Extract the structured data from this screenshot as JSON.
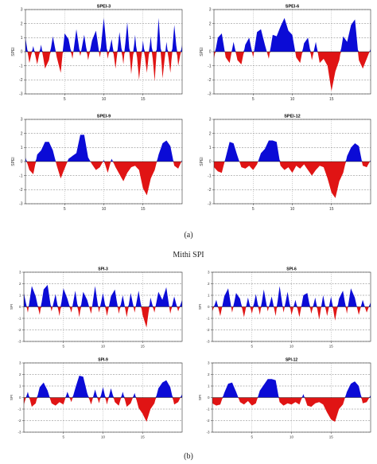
{
  "captions": {
    "a": "(a)",
    "b": "(b)"
  },
  "section_b_title": "Mithi SPI",
  "chart_data": [
    {
      "id": "spei3",
      "type": "area",
      "title": "SPEI-3",
      "ylabel": "SPEI",
      "ylim": [
        -3,
        3
      ],
      "yticks": [
        -3,
        -2,
        -1,
        0,
        1,
        2,
        3
      ],
      "xlim": [
        0,
        20
      ],
      "xticks": [
        5,
        10,
        15
      ],
      "grid": true,
      "x": [
        0,
        0.5,
        1,
        1.5,
        2,
        2.5,
        3,
        3.5,
        4,
        4.5,
        5,
        5.5,
        6,
        6.5,
        7,
        7.5,
        8,
        8.5,
        9,
        9.5,
        10,
        10.5,
        11,
        11.5,
        12,
        12.5,
        13,
        13.5,
        14,
        14.5,
        15,
        15.5,
        16,
        16.5,
        17,
        17.5,
        18,
        18.5,
        19,
        19.5,
        20
      ],
      "values": [
        1.0,
        -0.8,
        0.4,
        -0.9,
        0.5,
        -1.2,
        -0.6,
        1.1,
        -0.4,
        -1.5,
        1.3,
        0.9,
        -0.5,
        1.6,
        -0.3,
        1.2,
        -0.6,
        0.8,
        1.5,
        -0.4,
        2.4,
        -0.5,
        0.9,
        -1.2,
        1.4,
        -0.9,
        2.1,
        -1.6,
        1.2,
        -2.0,
        0.8,
        -1.5,
        1.1,
        -2.1,
        2.4,
        -1.9,
        0.7,
        -1.5,
        1.9,
        -1.0,
        0.5
      ]
    },
    {
      "id": "spei6",
      "type": "area",
      "title": "SPEI-6",
      "ylabel": "SPEI",
      "ylim": [
        -3,
        3
      ],
      "yticks": [
        -3,
        -2,
        -1,
        0,
        1,
        2,
        3
      ],
      "xlim": [
        0,
        20
      ],
      "xticks": [
        5,
        10,
        15
      ],
      "grid": true,
      "x": [
        0,
        0.5,
        1,
        1.5,
        2,
        2.5,
        3,
        3.5,
        4,
        4.5,
        5,
        5.5,
        6,
        6.5,
        7,
        7.5,
        8,
        8.5,
        9,
        9.5,
        10,
        10.5,
        11,
        11.5,
        12,
        12.5,
        13,
        13.5,
        14,
        14.5,
        15,
        15.5,
        16,
        16.5,
        17,
        17.5,
        18,
        18.5,
        19,
        19.5,
        20
      ],
      "values": [
        -0.5,
        1.0,
        1.3,
        -0.4,
        -0.8,
        0.7,
        -0.6,
        -0.9,
        0.5,
        1.0,
        -0.4,
        1.4,
        1.6,
        0.5,
        -0.5,
        1.2,
        1.1,
        1.8,
        2.4,
        1.5,
        1.2,
        -0.4,
        -0.8,
        0.6,
        1.0,
        -0.6,
        0.7,
        -0.8,
        -0.5,
        -1.0,
        -2.8,
        -1.4,
        -0.6,
        1.1,
        0.7,
        1.9,
        2.3,
        -0.6,
        -1.2,
        -0.5,
        0.2
      ]
    },
    {
      "id": "spei9",
      "type": "area",
      "title": "SPEI-9",
      "ylabel": "SPEI",
      "ylim": [
        -3,
        3
      ],
      "yticks": [
        -3,
        -2,
        -1,
        0,
        1,
        2,
        3
      ],
      "xlim": [
        0,
        20
      ],
      "xticks": [
        5,
        10,
        15
      ],
      "grid": true,
      "x": [
        0,
        0.5,
        1,
        1.5,
        2,
        2.5,
        3,
        3.5,
        4,
        4.5,
        5,
        5.5,
        6,
        6.5,
        7,
        7.5,
        8,
        8.5,
        9,
        9.5,
        10,
        10.5,
        11,
        11.5,
        12,
        12.5,
        13,
        13.5,
        14,
        14.5,
        15,
        15.5,
        16,
        16.5,
        17,
        17.5,
        18,
        18.5,
        19,
        19.5,
        20
      ],
      "values": [
        0.3,
        -0.6,
        -0.9,
        0.5,
        0.8,
        1.4,
        1.4,
        0.8,
        -0.3,
        -1.2,
        -0.5,
        0.2,
        0.4,
        0.6,
        1.9,
        1.9,
        0.3,
        -0.2,
        -0.6,
        -0.4,
        0.1,
        -0.8,
        0.2,
        -0.4,
        -0.9,
        -1.4,
        -0.8,
        -0.4,
        -0.3,
        -0.6,
        -1.9,
        -2.4,
        -1.2,
        -0.6,
        0.5,
        1.3,
        1.5,
        1.1,
        -0.3,
        -0.5,
        0.1
      ]
    },
    {
      "id": "spei12",
      "type": "area",
      "title": "SPEI-12",
      "ylabel": "SPEI",
      "ylim": [
        -3,
        3
      ],
      "yticks": [
        -3,
        -2,
        -1,
        0,
        1,
        2,
        3
      ],
      "xlim": [
        0,
        20
      ],
      "xticks": [
        5,
        10,
        15
      ],
      "grid": true,
      "x": [
        0,
        0.5,
        1,
        1.5,
        2,
        2.5,
        3,
        3.5,
        4,
        4.5,
        5,
        5.5,
        6,
        6.5,
        7,
        7.5,
        8,
        8.5,
        9,
        9.5,
        10,
        10.5,
        11,
        11.5,
        12,
        12.5,
        13,
        13.5,
        14,
        14.5,
        15,
        15.5,
        16,
        16.5,
        17,
        17.5,
        18,
        18.5,
        19,
        19.5,
        20
      ],
      "values": [
        -0.4,
        -0.7,
        -0.8,
        0.3,
        1.4,
        1.3,
        0.4,
        -0.4,
        -0.5,
        -0.3,
        -0.6,
        -0.2,
        0.6,
        0.9,
        1.5,
        1.5,
        1.4,
        -0.3,
        -0.6,
        -0.4,
        -0.8,
        -0.3,
        -0.5,
        -0.2,
        -0.6,
        -1.0,
        -0.6,
        -0.3,
        -0.4,
        -1.2,
        -2.2,
        -2.6,
        -1.4,
        -0.8,
        0.4,
        1.0,
        1.3,
        1.1,
        -0.3,
        -0.4,
        0.1
      ]
    },
    {
      "id": "spi3",
      "type": "area",
      "title": "SPI-3",
      "ylabel": "SPI",
      "ylim": [
        -3,
        3
      ],
      "yticks": [
        -3,
        -2,
        -1,
        0,
        1,
        2,
        3
      ],
      "xlim": [
        0,
        20
      ],
      "xticks": [
        5,
        10,
        15
      ],
      "grid": true,
      "x": [
        0,
        0.5,
        1,
        1.5,
        2,
        2.5,
        3,
        3.5,
        4,
        4.5,
        5,
        5.5,
        6,
        6.5,
        7,
        7.5,
        8,
        8.5,
        9,
        9.5,
        10,
        10.5,
        11,
        11.5,
        12,
        12.5,
        13,
        13.5,
        14,
        14.5,
        15,
        15.5,
        16,
        16.5,
        17,
        17.5,
        18,
        18.5,
        19,
        19.5,
        20
      ],
      "values": [
        1.2,
        -0.5,
        1.8,
        0.9,
        -0.7,
        1.5,
        1.9,
        -0.4,
        1.1,
        -0.8,
        1.6,
        0.7,
        -0.5,
        1.4,
        -0.9,
        1.3,
        0.6,
        -0.6,
        1.8,
        -0.5,
        1.2,
        -0.8,
        0.9,
        1.5,
        -0.6,
        1.0,
        -0.9,
        1.2,
        -0.5,
        1.4,
        -0.7,
        -1.8,
        0.8,
        -0.5,
        1.3,
        0.6,
        1.7,
        -0.6,
        0.9,
        -0.4,
        0.6
      ]
    },
    {
      "id": "spi6",
      "type": "area",
      "title": "SPI-6",
      "ylabel": "SPI",
      "ylim": [
        -3,
        3
      ],
      "yticks": [
        -3,
        -2,
        -1,
        0,
        1,
        2,
        3
      ],
      "xlim": [
        0,
        20
      ],
      "xticks": [
        5,
        10,
        15
      ],
      "grid": true,
      "x": [
        0,
        0.5,
        1,
        1.5,
        2,
        2.5,
        3,
        3.5,
        4,
        4.5,
        5,
        5.5,
        6,
        6.5,
        7,
        7.5,
        8,
        8.5,
        9,
        9.5,
        10,
        10.5,
        11,
        11.5,
        12,
        12.5,
        13,
        13.5,
        14,
        14.5,
        15,
        15.5,
        16,
        16.5,
        17,
        17.5,
        18,
        18.5,
        19,
        19.5,
        20
      ],
      "values": [
        -0.4,
        0.6,
        -0.8,
        0.9,
        1.6,
        -0.5,
        1.2,
        0.7,
        -0.9,
        0.8,
        -0.6,
        1.1,
        -0.7,
        1.5,
        -0.4,
        0.9,
        -0.8,
        1.8,
        -0.5,
        1.3,
        -0.7,
        0.6,
        -0.9,
        1.0,
        1.2,
        -0.6,
        0.8,
        -1.1,
        1.0,
        -0.8,
        0.9,
        -1.2,
        0.7,
        1.4,
        -0.6,
        1.6,
        0.8,
        -0.7,
        0.6,
        -0.5,
        0.4
      ]
    },
    {
      "id": "spi9",
      "type": "area",
      "title": "SPI-9",
      "ylabel": "SPI",
      "ylim": [
        -3,
        3
      ],
      "yticks": [
        -3,
        -2,
        -1,
        0,
        1,
        2,
        3
      ],
      "xlim": [
        0,
        20
      ],
      "xticks": [
        5,
        10,
        15
      ],
      "grid": true,
      "x": [
        0,
        0.5,
        1,
        1.5,
        2,
        2.5,
        3,
        3.5,
        4,
        4.5,
        5,
        5.5,
        6,
        6.5,
        7,
        7.5,
        8,
        8.5,
        9,
        9.5,
        10,
        10.5,
        11,
        11.5,
        12,
        12.5,
        13,
        13.5,
        14,
        14.5,
        15,
        15.5,
        16,
        16.5,
        17,
        17.5,
        18,
        18.5,
        19,
        19.5,
        20
      ],
      "values": [
        -0.6,
        0.5,
        -0.8,
        -0.5,
        0.9,
        1.3,
        0.6,
        -0.5,
        -0.7,
        -0.4,
        -0.6,
        0.5,
        -0.4,
        0.8,
        1.9,
        1.8,
        0.4,
        -0.6,
        0.7,
        -0.5,
        0.9,
        -0.6,
        0.8,
        -0.4,
        -0.7,
        0.5,
        -0.8,
        -0.5,
        0.4,
        -0.9,
        -1.4,
        -2.1,
        -1.0,
        -0.5,
        0.8,
        1.3,
        1.5,
        0.9,
        -0.6,
        -0.4,
        0.3
      ]
    },
    {
      "id": "spi12",
      "type": "area",
      "title": "SPI-12",
      "ylabel": "SPI",
      "ylim": [
        -3,
        3
      ],
      "yticks": [
        -3,
        -2,
        -1,
        0,
        1,
        2,
        3
      ],
      "xlim": [
        0,
        20
      ],
      "xticks": [
        5,
        10,
        15
      ],
      "grid": true,
      "x": [
        0,
        0.5,
        1,
        1.5,
        2,
        2.5,
        3,
        3.5,
        4,
        4.5,
        5,
        5.5,
        6,
        6.5,
        7,
        7.5,
        8,
        8.5,
        9,
        9.5,
        10,
        10.5,
        11,
        11.5,
        12,
        12.5,
        13,
        13.5,
        14,
        14.5,
        15,
        15.5,
        16,
        16.5,
        17,
        17.5,
        18,
        18.5,
        19,
        19.5,
        20
      ],
      "values": [
        -0.5,
        -0.7,
        -0.6,
        0.4,
        1.2,
        1.3,
        0.5,
        -0.4,
        -0.6,
        -0.3,
        -0.7,
        -0.5,
        0.6,
        1.1,
        1.6,
        1.6,
        1.5,
        -0.4,
        -0.7,
        -0.5,
        -0.6,
        -0.4,
        -0.6,
        0.3,
        -0.7,
        -0.8,
        -0.5,
        -0.4,
        -0.6,
        -1.3,
        -1.9,
        -2.1,
        -1.0,
        -0.6,
        0.5,
        1.2,
        1.4,
        1.0,
        -0.5,
        -0.4,
        0.2
      ]
    }
  ],
  "colors": {
    "positive": "#0b0bd6",
    "negative": "#e01414",
    "grid": "#777777"
  }
}
